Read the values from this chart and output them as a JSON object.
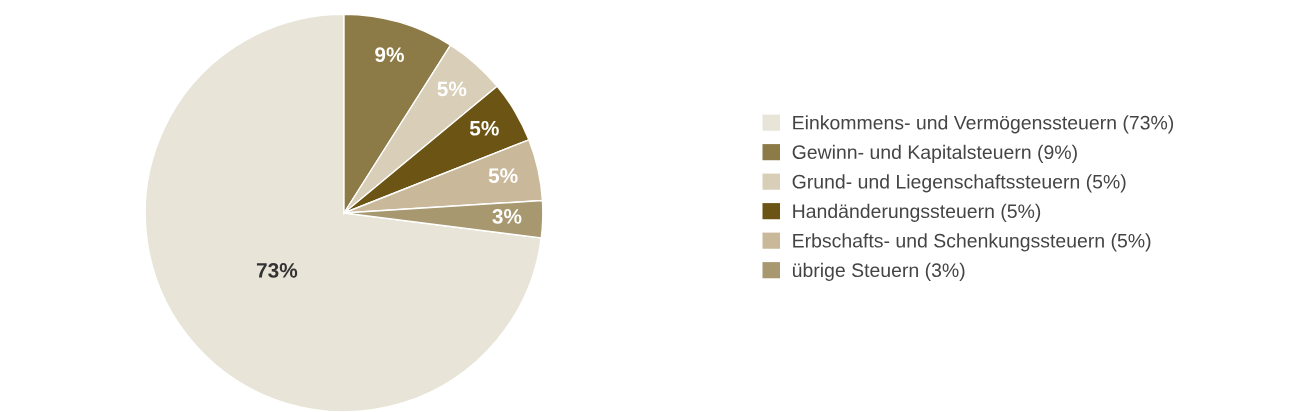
{
  "chart_data": {
    "type": "pie",
    "categories": [
      "Einkommens- und Vermögenssteuern (73%)",
      "Gewinn- und Kapitalsteuern (9%)",
      "Grund- und Liegenschaftssteuern (5%)",
      "Handänderungssteuern (5%)",
      "Erbschafts- und Schenkungssteuern (5%)",
      "übrige Steuern (3%)"
    ],
    "values": [
      73,
      9,
      5,
      5,
      5,
      3
    ],
    "value_labels": [
      "73%",
      "9%",
      "5%",
      "5%",
      "5%",
      "3%"
    ],
    "colors": [
      "#e8e4d8",
      "#8c7a47",
      "#d9cfb8",
      "#6b5414",
      "#c9b99a",
      "#a89870"
    ],
    "legend": "right"
  }
}
